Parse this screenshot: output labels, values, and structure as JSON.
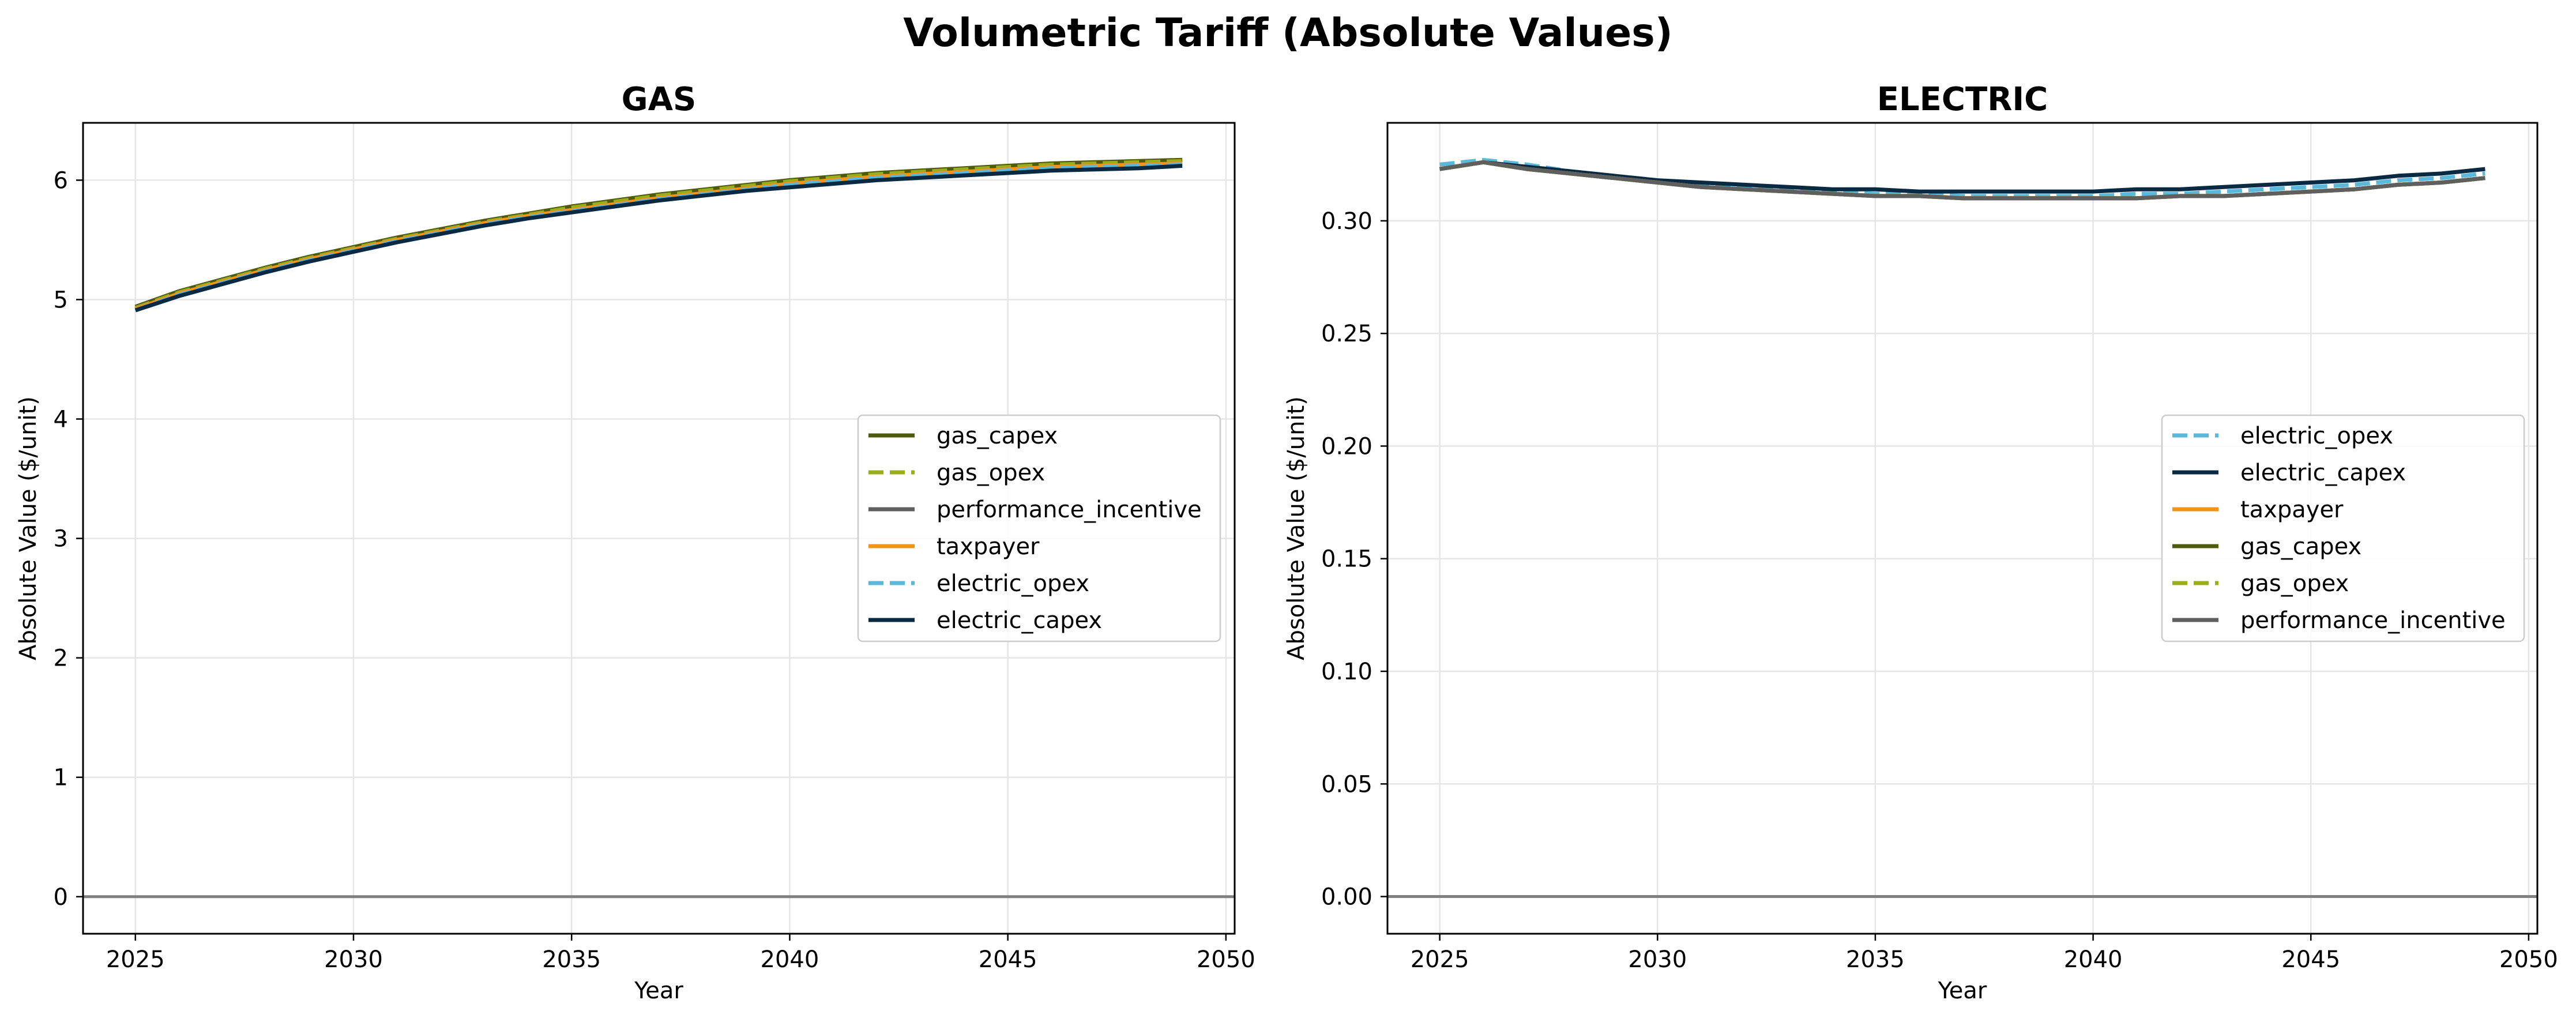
{
  "figure": {
    "title": "Volumetric Tariff (Absolute Values)"
  },
  "colors": {
    "gas_capex": "#4d5b0a",
    "gas_opex": "#9aae1c",
    "performance_incentive": "#5f5f5f",
    "taxpayer": "#f29418",
    "electric_opex": "#5ab9da",
    "electric_capex": "#0a2a43",
    "zero_line": "#808080",
    "grid": "#e6e6e6"
  },
  "chart_data": [
    {
      "type": "line",
      "title": "GAS",
      "xlabel": "Year",
      "ylabel": "Absolute Value ($/unit)",
      "xlim": [
        2023.8,
        2050.2
      ],
      "ylim": [
        -0.31,
        6.48
      ],
      "xticks": [
        2025,
        2030,
        2035,
        2040,
        2045,
        2050
      ],
      "yticks": [
        0,
        1,
        2,
        3,
        4,
        5,
        6
      ],
      "ytick_labels": [
        "0",
        "1",
        "2",
        "3",
        "4",
        "5",
        "6"
      ],
      "grid": true,
      "legend_position": "center-right",
      "x": [
        2025,
        2026,
        2027,
        2028,
        2029,
        2030,
        2031,
        2032,
        2033,
        2034,
        2035,
        2036,
        2037,
        2038,
        2039,
        2040,
        2041,
        2042,
        2043,
        2044,
        2045,
        2046,
        2047,
        2048,
        2049
      ],
      "series": [
        {
          "name": "gas_capex",
          "style": "solid",
          "values": [
            4.94,
            5.07,
            5.17,
            5.27,
            5.36,
            5.44,
            5.52,
            5.59,
            5.66,
            5.72,
            5.78,
            5.83,
            5.88,
            5.92,
            5.96,
            6.0,
            6.03,
            6.06,
            6.08,
            6.1,
            6.12,
            6.14,
            6.15,
            6.16,
            6.17
          ]
        },
        {
          "name": "gas_opex",
          "style": "dashed",
          "values": [
            4.93,
            5.06,
            5.16,
            5.26,
            5.35,
            5.43,
            5.51,
            5.58,
            5.65,
            5.71,
            5.77,
            5.82,
            5.87,
            5.91,
            5.95,
            5.99,
            6.02,
            6.05,
            6.07,
            6.09,
            6.11,
            6.13,
            6.14,
            6.15,
            6.16
          ]
        },
        {
          "name": "performance_incentive",
          "style": "solid",
          "values": [
            4.92,
            5.05,
            5.15,
            5.25,
            5.34,
            5.42,
            5.5,
            5.57,
            5.64,
            5.7,
            5.75,
            5.8,
            5.85,
            5.89,
            5.93,
            5.97,
            6.0,
            6.03,
            6.05,
            6.07,
            6.09,
            6.11,
            6.12,
            6.13,
            6.14
          ]
        },
        {
          "name": "taxpayer",
          "style": "solid",
          "values": [
            4.92,
            5.05,
            5.15,
            5.25,
            5.34,
            5.42,
            5.5,
            5.57,
            5.64,
            5.7,
            5.75,
            5.8,
            5.85,
            5.89,
            5.93,
            5.97,
            6.0,
            6.03,
            6.05,
            6.07,
            6.09,
            6.11,
            6.12,
            6.13,
            6.14
          ]
        },
        {
          "name": "electric_opex",
          "style": "dashed",
          "values": [
            4.91,
            5.04,
            5.14,
            5.24,
            5.33,
            5.41,
            5.49,
            5.56,
            5.63,
            5.69,
            5.74,
            5.79,
            5.84,
            5.88,
            5.92,
            5.96,
            5.99,
            6.02,
            6.04,
            6.06,
            6.08,
            6.1,
            6.11,
            6.12,
            6.13
          ]
        },
        {
          "name": "electric_capex",
          "style": "solid",
          "values": [
            4.91,
            5.03,
            5.13,
            5.23,
            5.32,
            5.4,
            5.48,
            5.55,
            5.62,
            5.68,
            5.73,
            5.78,
            5.83,
            5.87,
            5.91,
            5.94,
            5.97,
            6.0,
            6.02,
            6.04,
            6.06,
            6.08,
            6.09,
            6.1,
            6.12
          ]
        }
      ]
    },
    {
      "type": "line",
      "title": "ELECTRIC",
      "xlabel": "Year",
      "ylabel": "Absolute Value ($/unit)",
      "xlim": [
        2023.8,
        2050.2
      ],
      "ylim": [
        -0.0165,
        0.3435
      ],
      "xticks": [
        2025,
        2030,
        2035,
        2040,
        2045,
        2050
      ],
      "yticks": [
        0.0,
        0.05,
        0.1,
        0.15,
        0.2,
        0.25,
        0.3
      ],
      "ytick_labels": [
        "0.00",
        "0.05",
        "0.10",
        "0.15",
        "0.20",
        "0.25",
        "0.30"
      ],
      "grid": true,
      "legend_position": "center-right",
      "x": [
        2025,
        2026,
        2027,
        2028,
        2029,
        2030,
        2031,
        2032,
        2033,
        2034,
        2035,
        2036,
        2037,
        2038,
        2039,
        2040,
        2041,
        2042,
        2043,
        2044,
        2045,
        2046,
        2047,
        2048,
        2049
      ],
      "series": [
        {
          "name": "electric_opex",
          "style": "dashed",
          "values": [
            0.325,
            0.327,
            0.325,
            0.322,
            0.32,
            0.318,
            0.316,
            0.315,
            0.314,
            0.313,
            0.312,
            0.312,
            0.311,
            0.311,
            0.311,
            0.311,
            0.312,
            0.312,
            0.313,
            0.314,
            0.315,
            0.316,
            0.318,
            0.319,
            0.321
          ]
        },
        {
          "name": "electric_capex",
          "style": "solid",
          "values": [
            0.323,
            0.326,
            0.324,
            0.322,
            0.32,
            0.318,
            0.317,
            0.316,
            0.315,
            0.314,
            0.314,
            0.313,
            0.313,
            0.313,
            0.313,
            0.313,
            0.314,
            0.314,
            0.315,
            0.316,
            0.317,
            0.318,
            0.32,
            0.321,
            0.323
          ]
        },
        {
          "name": "taxpayer",
          "style": "solid",
          "values": [
            0.323,
            0.326,
            0.323,
            0.321,
            0.319,
            0.317,
            0.315,
            0.314,
            0.313,
            0.312,
            0.311,
            0.311,
            0.31,
            0.31,
            0.31,
            0.31,
            0.31,
            0.311,
            0.311,
            0.312,
            0.313,
            0.314,
            0.316,
            0.317,
            0.319
          ]
        },
        {
          "name": "gas_capex",
          "style": "solid",
          "values": [
            0.323,
            0.326,
            0.323,
            0.321,
            0.319,
            0.317,
            0.315,
            0.314,
            0.313,
            0.312,
            0.311,
            0.311,
            0.31,
            0.31,
            0.31,
            0.31,
            0.31,
            0.311,
            0.311,
            0.312,
            0.313,
            0.314,
            0.316,
            0.317,
            0.319
          ]
        },
        {
          "name": "gas_opex",
          "style": "dashed",
          "values": [
            0.323,
            0.326,
            0.323,
            0.321,
            0.319,
            0.317,
            0.315,
            0.314,
            0.313,
            0.312,
            0.311,
            0.311,
            0.31,
            0.31,
            0.31,
            0.31,
            0.31,
            0.311,
            0.311,
            0.312,
            0.313,
            0.314,
            0.316,
            0.317,
            0.319
          ]
        },
        {
          "name": "performance_incentive",
          "style": "solid",
          "values": [
            0.323,
            0.326,
            0.323,
            0.321,
            0.319,
            0.317,
            0.315,
            0.314,
            0.313,
            0.312,
            0.311,
            0.311,
            0.31,
            0.31,
            0.31,
            0.31,
            0.31,
            0.311,
            0.311,
            0.312,
            0.313,
            0.314,
            0.316,
            0.317,
            0.319
          ]
        }
      ]
    }
  ]
}
